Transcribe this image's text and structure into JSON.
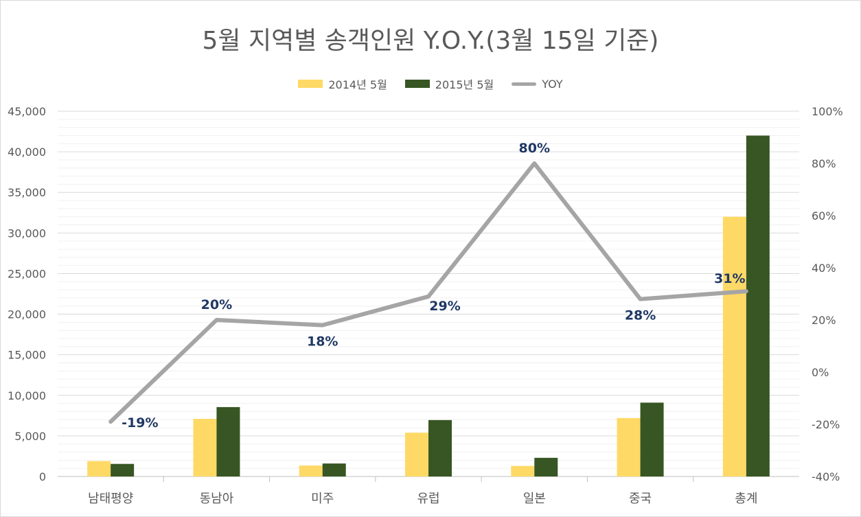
{
  "chart_data": {
    "type": "bar",
    "title": "5월 지역별 송객인원 Y.O.Y.(3월 15일 기준)",
    "categories": [
      "남태평양",
      "동남아",
      "미주",
      "유럽",
      "일본",
      "중국",
      "총계"
    ],
    "series": [
      {
        "name": "2014년 5월",
        "type": "bar",
        "axis": "left",
        "color": "#ffd966",
        "values": [
          1900,
          7100,
          1350,
          5400,
          1300,
          7200,
          32000
        ]
      },
      {
        "name": "2015년 5월",
        "type": "bar",
        "axis": "left",
        "color": "#375623",
        "values": [
          1550,
          8550,
          1600,
          6950,
          2300,
          9100,
          42000
        ]
      },
      {
        "name": "YOY",
        "type": "line",
        "axis": "right",
        "color": "#a5a5a5",
        "values": [
          -19,
          20,
          18,
          29,
          80,
          28,
          31
        ],
        "labels": [
          "-19%",
          "20%",
          "18%",
          "29%",
          "80%",
          "28%",
          "31%"
        ]
      }
    ],
    "y_left": {
      "min": 0,
      "max": 45000,
      "step": 5000,
      "ticks": [
        "0",
        "5,000",
        "10,000",
        "15,000",
        "20,000",
        "25,000",
        "30,000",
        "35,000",
        "40,000",
        "45,000"
      ]
    },
    "y_right": {
      "min": -40,
      "max": 100,
      "step": 20,
      "ticks": [
        "-40%",
        "-20%",
        "0%",
        "20%",
        "40%",
        "60%",
        "80%",
        "100%"
      ]
    },
    "grid": true,
    "legend_position": "top"
  }
}
